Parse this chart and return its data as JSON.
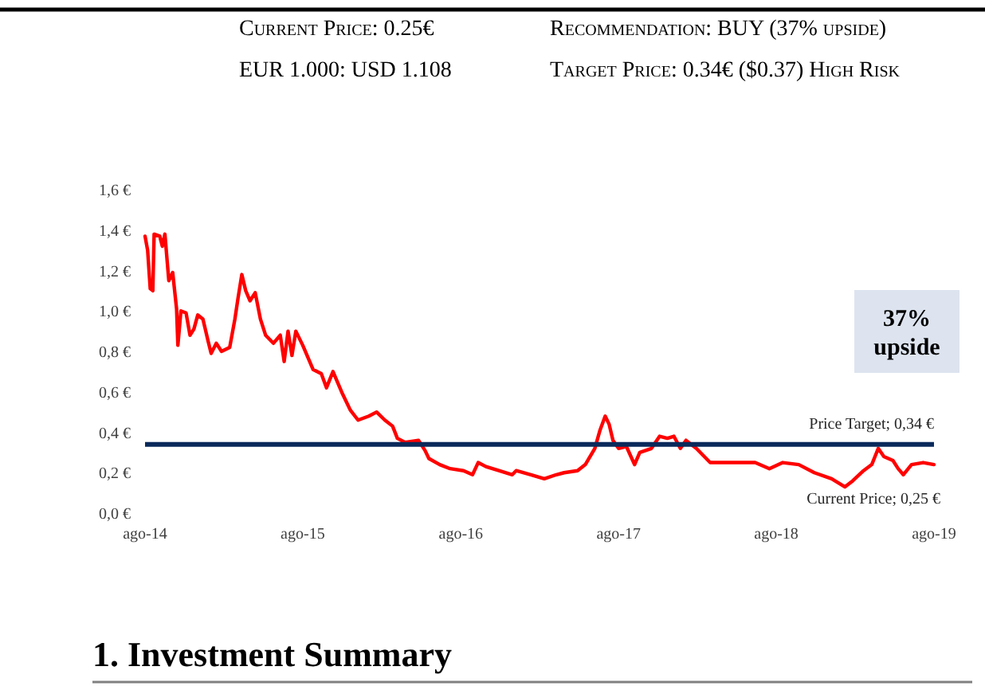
{
  "chart_data": {
    "type": "line",
    "x": [
      "2014-08-01",
      "2014-08-07",
      "2014-08-13",
      "2014-08-19",
      "2014-08-22",
      "2014-09-04",
      "2014-09-10",
      "2014-09-16",
      "2014-09-25",
      "2014-10-04",
      "2014-10-13",
      "2014-10-16",
      "2014-10-23",
      "2014-11-04",
      "2014-11-13",
      "2014-11-22",
      "2014-12-01",
      "2014-12-13",
      "2014-12-25",
      "2015-01-01",
      "2015-01-13",
      "2015-01-25",
      "2015-02-13",
      "2015-02-25",
      "2015-03-04",
      "2015-03-13",
      "2015-03-22",
      "2015-04-01",
      "2015-04-13",
      "2015-04-25",
      "2015-05-07",
      "2015-05-25",
      "2015-06-10",
      "2015-06-19",
      "2015-06-28",
      "2015-07-07",
      "2015-07-16",
      "2015-08-01",
      "2015-08-25",
      "2015-09-13",
      "2015-09-25",
      "2015-10-10",
      "2015-11-01",
      "2015-11-19",
      "2015-12-07",
      "2016-01-01",
      "2016-01-19",
      "2016-02-07",
      "2016-02-25",
      "2016-03-07",
      "2016-03-25",
      "2016-04-25",
      "2016-05-10",
      "2016-05-19",
      "2016-06-13",
      "2016-07-07",
      "2016-08-07",
      "2016-08-28",
      "2016-09-10",
      "2016-09-28",
      "2016-10-28",
      "2016-11-28",
      "2016-12-07",
      "2017-01-10",
      "2017-02-10",
      "2017-03-10",
      "2017-03-28",
      "2017-04-28",
      "2017-05-16",
      "2017-06-07",
      "2017-06-19",
      "2017-07-01",
      "2017-07-10",
      "2017-07-19",
      "2017-08-01",
      "2017-08-19",
      "2017-09-07",
      "2017-09-19",
      "2017-10-16",
      "2017-11-04",
      "2017-11-22",
      "2017-12-07",
      "2017-12-22",
      "2018-01-04",
      "2018-01-28",
      "2018-03-01",
      "2018-04-01",
      "2018-05-07",
      "2018-06-13",
      "2018-07-16",
      "2018-08-16",
      "2018-09-22",
      "2018-10-28",
      "2018-12-07",
      "2019-01-07",
      "2019-01-25",
      "2019-02-19",
      "2019-03-10",
      "2019-03-25",
      "2019-04-07",
      "2019-04-28",
      "2019-05-10",
      "2019-05-22",
      "2019-06-10",
      "2019-07-07",
      "2019-08-01"
    ],
    "series": [
      {
        "color": "#ff0000",
        "values": [
          1.37,
          1.3,
          1.11,
          1.1,
          1.38,
          1.37,
          1.32,
          1.38,
          1.15,
          1.19,
          1.01,
          0.83,
          1.0,
          0.99,
          0.88,
          0.91,
          0.98,
          0.96,
          0.85,
          0.79,
          0.84,
          0.8,
          0.82,
          0.96,
          1.06,
          1.18,
          1.1,
          1.05,
          1.09,
          0.96,
          0.88,
          0.84,
          0.88,
          0.75,
          0.9,
          0.78,
          0.9,
          0.83,
          0.71,
          0.69,
          0.62,
          0.7,
          0.59,
          0.51,
          0.46,
          0.48,
          0.5,
          0.46,
          0.43,
          0.37,
          0.35,
          0.36,
          0.31,
          0.27,
          0.24,
          0.22,
          0.21,
          0.19,
          0.25,
          0.23,
          0.21,
          0.19,
          0.21,
          0.19,
          0.17,
          0.19,
          0.2,
          0.21,
          0.24,
          0.32,
          0.41,
          0.48,
          0.44,
          0.36,
          0.32,
          0.33,
          0.24,
          0.3,
          0.32,
          0.38,
          0.37,
          0.38,
          0.32,
          0.36,
          0.32,
          0.25,
          0.25,
          0.25,
          0.25,
          0.22,
          0.25,
          0.24,
          0.2,
          0.17,
          0.13,
          0.16,
          0.21,
          0.24,
          0.32,
          0.28,
          0.26,
          0.22,
          0.19,
          0.24,
          0.25,
          0.24
        ]
      }
    ],
    "xlim": [
      "2014-08-01",
      "2019-08-01"
    ],
    "xticks": [
      {
        "value": "2014-08-01",
        "label": "ago-14"
      },
      {
        "value": "2015-08-01",
        "label": "ago-15"
      },
      {
        "value": "2016-08-01",
        "label": "ago-16"
      },
      {
        "value": "2017-08-01",
        "label": "ago-17"
      },
      {
        "value": "2018-08-01",
        "label": "ago-18"
      },
      {
        "value": "2019-08-01",
        "label": "ago-19"
      }
    ],
    "ylim": [
      0,
      1.6
    ],
    "yticks": [
      {
        "value": 0,
        "label": "0,0 €"
      },
      {
        "value": 0.2,
        "label": "0,2 €"
      },
      {
        "value": 0.4,
        "label": "0,4 €"
      },
      {
        "value": 0.6,
        "label": "0,6 €"
      },
      {
        "value": 0.8,
        "label": "0,8 €"
      },
      {
        "value": 1.0,
        "label": "1,0 €"
      },
      {
        "value": 1.2,
        "label": "1,2 €"
      },
      {
        "value": 1.4,
        "label": "1,4 €"
      },
      {
        "value": 1.6,
        "label": "1,6 €"
      }
    ],
    "ref_lines": [
      {
        "axis": "y",
        "value": 0.34,
        "label": "Price Target; 0,34 €",
        "color": "#0b2a5b"
      }
    ],
    "annotations": [
      "Current Price; 0,25 €",
      "37% upside",
      "Current Price: 0.25€",
      "EUR 1.000: USD 1.108",
      "Recommendation: BUY (37% upside)",
      "Target Price: 0.34€ ($0.37) High Risk",
      "1. Investment Summary"
    ],
    "grid": false
  }
}
